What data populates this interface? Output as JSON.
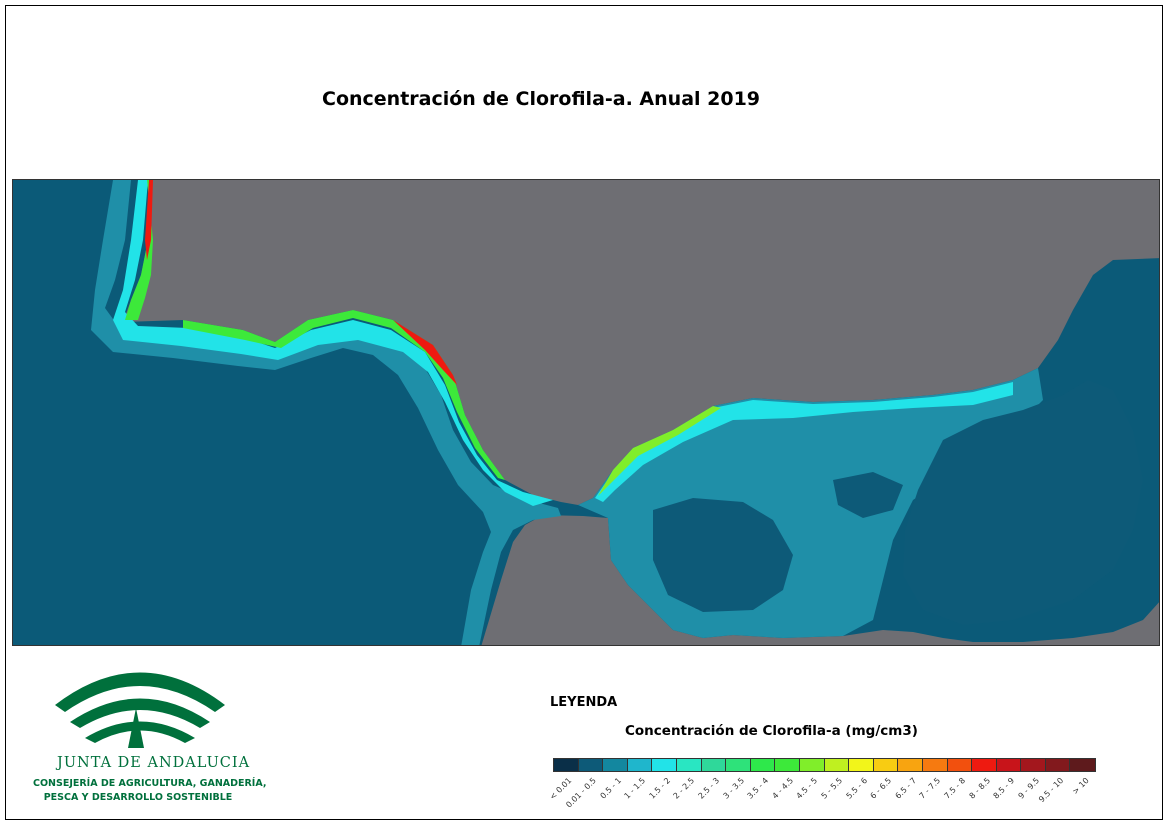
{
  "title": "Concentración de Clorofila-a. Anual 2019",
  "colors": {
    "land": "#6e6e73",
    "deep_ocean": "#0b5a78",
    "mid_ocean": "#1f8fa8",
    "shelf": "#24b4c8"
  },
  "logo": {
    "name": "JUNTA DE ANDALUCIA",
    "line1": "CONSEJERÍA DE AGRICULTURA, GANADERÍA,",
    "line2": "PESCA Y DESARROLLO SOSTENIBLE"
  },
  "legend": {
    "heading": "LEYENDA",
    "subtitle": "Concentración de Clorofila-a (mg/cm3)",
    "classes": [
      {
        "label": "< 0.01",
        "color": "#0a2f48"
      },
      {
        "label": "0.01 - 0.5",
        "color": "#0d5a78"
      },
      {
        "label": "0.5 - 1",
        "color": "#13879f"
      },
      {
        "label": "1 - 1.5",
        "color": "#1fb6cc"
      },
      {
        "label": "1.5 - 2",
        "color": "#22e3e8"
      },
      {
        "label": "2 - 2.5",
        "color": "#29e6c2"
      },
      {
        "label": "2.5 - 3",
        "color": "#2fd89a"
      },
      {
        "label": "3 - 3.5",
        "color": "#2ee27a"
      },
      {
        "label": "3.5 - 4",
        "color": "#2ee84b"
      },
      {
        "label": "4 - 4.5",
        "color": "#3de93a"
      },
      {
        "label": "4.5 - 5",
        "color": "#80ee2a"
      },
      {
        "label": "5 - 5.5",
        "color": "#bff020"
      },
      {
        "label": "5.5 - 6",
        "color": "#f2f51a"
      },
      {
        "label": "6 - 6.5",
        "color": "#f8cc12"
      },
      {
        "label": "6.5 - 7",
        "color": "#f8a410"
      },
      {
        "label": "7 - 7.5",
        "color": "#f67a10"
      },
      {
        "label": "7.5 - 8",
        "color": "#f2500e"
      },
      {
        "label": "8 - 8.5",
        "color": "#ee1a10"
      },
      {
        "label": "8.5 - 9",
        "color": "#c8141a"
      },
      {
        "label": "9 - 9.5",
        "color": "#a3171d"
      },
      {
        "label": "9.5 - 10",
        "color": "#82191d"
      },
      {
        "label": "> 10",
        "color": "#5e1a1c"
      }
    ]
  }
}
